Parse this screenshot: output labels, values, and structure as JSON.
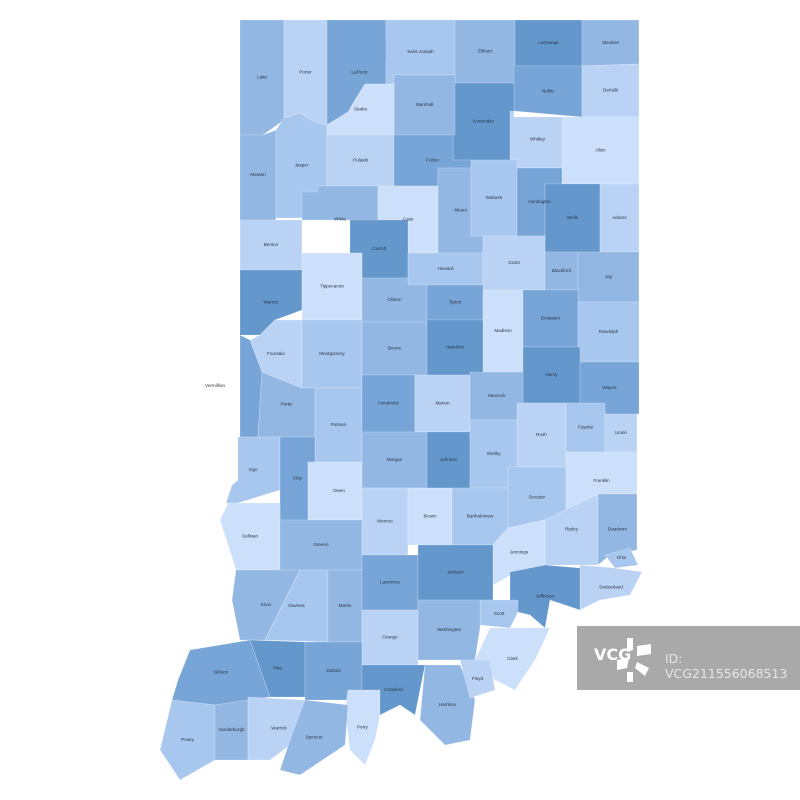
{
  "palette": [
    "#6497cb",
    "#77a5d8",
    "#93b7e3",
    "#a8c7ee",
    "#bad3f5",
    "#cde0fb"
  ],
  "counties": [
    {
      "name": "Lake",
      "shade": 3
    },
    {
      "name": "Porter",
      "shade": 5
    },
    {
      "name": "LaPorte",
      "shade": 2
    },
    {
      "name": "Saint Joseph",
      "shade": 4
    },
    {
      "name": "Elkhart",
      "shade": 3
    },
    {
      "name": "LaGrange",
      "shade": 1
    },
    {
      "name": "Steuben",
      "shade": 3
    },
    {
      "name": "Noble",
      "shade": 2
    },
    {
      "name": "DeKalb",
      "shade": 5
    },
    {
      "name": "Kosciusko",
      "shade": 1
    },
    {
      "name": "Marshall",
      "shade": 3
    },
    {
      "name": "Starke",
      "shade": 6
    },
    {
      "name": "Pulaski",
      "shade": 5
    },
    {
      "name": "Fulton",
      "shade": 2
    },
    {
      "name": "Whitley",
      "shade": 5
    },
    {
      "name": "Allen",
      "shade": 6
    },
    {
      "name": "Newton",
      "shade": 3
    },
    {
      "name": "Jasper",
      "shade": 4
    },
    {
      "name": "White",
      "shade": 3
    },
    {
      "name": "Cass",
      "shade": 6
    },
    {
      "name": "Miami",
      "shade": 3
    },
    {
      "name": "Wabash",
      "shade": 4
    },
    {
      "name": "Huntington",
      "shade": 2
    },
    {
      "name": "Wells",
      "shade": 1
    },
    {
      "name": "Adams",
      "shade": 5
    },
    {
      "name": "Benton",
      "shade": 5
    },
    {
      "name": "Carroll",
      "shade": 1
    },
    {
      "name": "Warren",
      "shade": 1
    },
    {
      "name": "Tippecanoe",
      "shade": 6
    },
    {
      "name": "Fountain",
      "shade": 5
    },
    {
      "name": "Vermillion",
      "shade": 2
    },
    {
      "name": "Clinton",
      "shade": 3
    },
    {
      "name": "Howard",
      "shade": 4
    },
    {
      "name": "Grant",
      "shade": 5
    },
    {
      "name": "Blackford",
      "shade": 3
    },
    {
      "name": "Jay",
      "shade": 3
    },
    {
      "name": "Tipton",
      "shade": 2
    },
    {
      "name": "Madison",
      "shade": 6
    },
    {
      "name": "Delaware",
      "shade": 2
    },
    {
      "name": "Randolph",
      "shade": 4
    },
    {
      "name": "Montgomery",
      "shade": 4
    },
    {
      "name": "Boone",
      "shade": 3
    },
    {
      "name": "Hamilton",
      "shade": 1
    },
    {
      "name": "Henry",
      "shade": 1
    },
    {
      "name": "Wayne",
      "shade": 2
    },
    {
      "name": "Parke",
      "shade": 3
    },
    {
      "name": "Putnam",
      "shade": 4
    },
    {
      "name": "Hendricks",
      "shade": 2
    },
    {
      "name": "Marion",
      "shade": 5
    },
    {
      "name": "Hancock",
      "shade": 3
    },
    {
      "name": "Rush",
      "shade": 5
    },
    {
      "name": "Fayette",
      "shade": 4
    },
    {
      "name": "Union",
      "shade": 5
    },
    {
      "name": "Vigo",
      "shade": 4
    },
    {
      "name": "Clay",
      "shade": 2
    },
    {
      "name": "Owen",
      "shade": 6
    },
    {
      "name": "Morgan",
      "shade": 3
    },
    {
      "name": "Johnson",
      "shade": 1
    },
    {
      "name": "Shelby",
      "shade": 4
    },
    {
      "name": "Franklin",
      "shade": 6
    },
    {
      "name": "Decatur",
      "shade": 4
    },
    {
      "name": "Sullivan",
      "shade": 6
    },
    {
      "name": "Greene",
      "shade": 3
    },
    {
      "name": "Monroe",
      "shade": 5
    },
    {
      "name": "Brown",
      "shade": 6
    },
    {
      "name": "Bartholomew",
      "shade": 4
    },
    {
      "name": "Jennings",
      "shade": 6
    },
    {
      "name": "Ripley",
      "shade": 5
    },
    {
      "name": "Dearborn",
      "shade": 3
    },
    {
      "name": "Ohio",
      "shade": 4
    },
    {
      "name": "Switzerland",
      "shade": 5
    },
    {
      "name": "Knox",
      "shade": 3
    },
    {
      "name": "Daviess",
      "shade": 4
    },
    {
      "name": "Martin",
      "shade": 3
    },
    {
      "name": "Lawrence",
      "shade": 2
    },
    {
      "name": "Jackson",
      "shade": 1
    },
    {
      "name": "Jefferson",
      "shade": 1
    },
    {
      "name": "Scott",
      "shade": 4
    },
    {
      "name": "Orange",
      "shade": 5
    },
    {
      "name": "Washington",
      "shade": 3
    },
    {
      "name": "Clark",
      "shade": 6
    },
    {
      "name": "Gibson",
      "shade": 2
    },
    {
      "name": "Pike",
      "shade": 1
    },
    {
      "name": "Dubois",
      "shade": 2
    },
    {
      "name": "Crawford",
      "shade": 1
    },
    {
      "name": "Harrison",
      "shade": 3
    },
    {
      "name": "Floyd",
      "shade": 5
    },
    {
      "name": "Perry",
      "shade": 6
    },
    {
      "name": "Posey",
      "shade": 4
    },
    {
      "name": "Vanderburgh",
      "shade": 3
    },
    {
      "name": "Warrick",
      "shade": 5
    },
    {
      "name": "Spencer",
      "shade": 3
    }
  ],
  "watermark": {
    "logo": "VCG",
    "id": "ID: VCG211556068513"
  }
}
